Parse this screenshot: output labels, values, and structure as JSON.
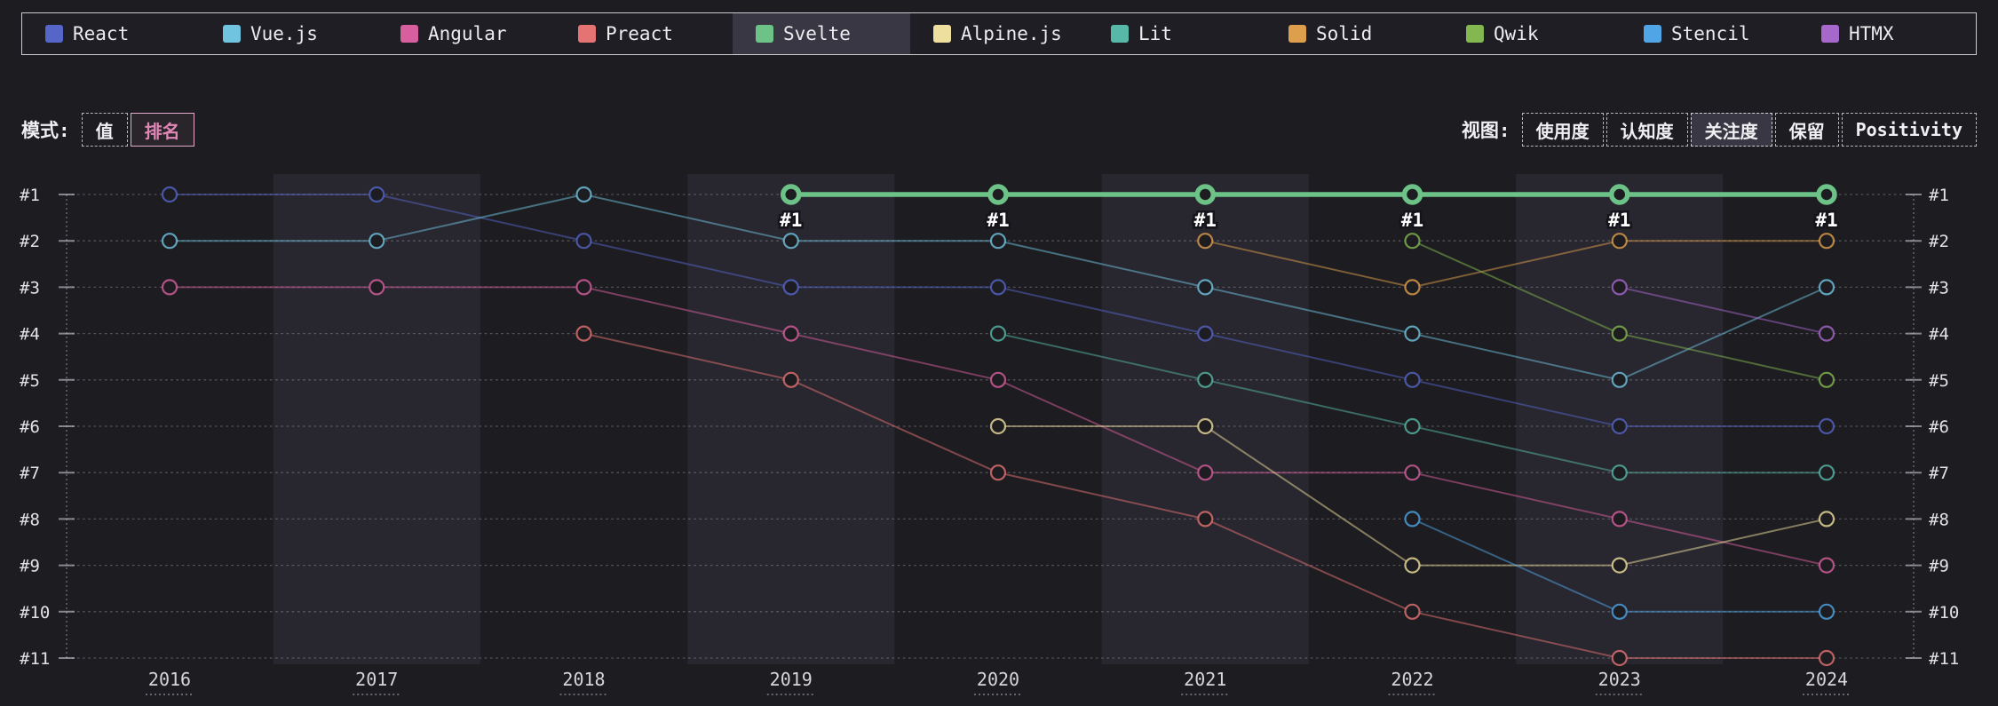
{
  "legend": {
    "items": [
      {
        "key": "react",
        "label": "React",
        "color": "#5565c8",
        "selected": false
      },
      {
        "key": "vuejs",
        "label": "Vue.js",
        "color": "#70c4e0",
        "selected": false
      },
      {
        "key": "angular",
        "label": "Angular",
        "color": "#d75f9e",
        "selected": false
      },
      {
        "key": "preact",
        "label": "Preact",
        "color": "#e57373",
        "selected": false
      },
      {
        "key": "svelte",
        "label": "Svelte",
        "color": "#6cc287",
        "selected": true
      },
      {
        "key": "alpinejs",
        "label": "Alpine.js",
        "color": "#eedf9e",
        "selected": false
      },
      {
        "key": "lit",
        "label": "Lit",
        "color": "#58b8a8",
        "selected": false
      },
      {
        "key": "solid",
        "label": "Solid",
        "color": "#de9f4c",
        "selected": false
      },
      {
        "key": "qwik",
        "label": "Qwik",
        "color": "#83b850",
        "selected": false
      },
      {
        "key": "stencil",
        "label": "Stencil",
        "color": "#4fa5e5",
        "selected": false
      },
      {
        "key": "htmx",
        "label": "HTMX",
        "color": "#a668cb",
        "selected": false
      }
    ]
  },
  "controls": {
    "mode": {
      "label": "模式:",
      "options": [
        {
          "key": "value",
          "label": "值",
          "selected": false
        },
        {
          "key": "rank",
          "label": "排名",
          "selected": true
        }
      ]
    },
    "view": {
      "label": "视图:",
      "options": [
        {
          "key": "usage",
          "label": "使用度",
          "selected": false
        },
        {
          "key": "awareness",
          "label": "认知度",
          "selected": false
        },
        {
          "key": "interest",
          "label": "关注度",
          "selected": true
        },
        {
          "key": "retention",
          "label": "保留",
          "selected": false
        },
        {
          "key": "positivity",
          "label": "Positivity",
          "selected": false
        }
      ]
    }
  },
  "colors": {
    "background": "#1d1c21",
    "band": "rgba(140,125,180,0.10)",
    "selected_bg": "#3a3744",
    "rank_accent": "#e187b6",
    "grid": "#c9c9d2",
    "axis": "#a9a9b2",
    "label_text": "#e2e2e6"
  },
  "chart_data": {
    "type": "line",
    "mode": "rank",
    "x": [
      2016,
      2017,
      2018,
      2019,
      2020,
      2021,
      2022,
      2023,
      2024
    ],
    "y_axis_labels": [
      "#1",
      "#2",
      "#3",
      "#4",
      "#5",
      "#6",
      "#7",
      "#8",
      "#9",
      "#10",
      "#11"
    ],
    "ylim": [
      1,
      11
    ],
    "grid": "dotted-horizontal",
    "legend_position": "top",
    "highlight_series": "Svelte",
    "highlight_point_label": "#1",
    "series": [
      {
        "key": "react",
        "name": "React",
        "color": "#5565c8",
        "highlight": false,
        "values": [
          1,
          1,
          2,
          3,
          3,
          4,
          5,
          6,
          6
        ]
      },
      {
        "key": "vuejs",
        "name": "Vue.js",
        "color": "#70c4e0",
        "highlight": false,
        "values": [
          2,
          2,
          1,
          2,
          2,
          3,
          4,
          5,
          3
        ]
      },
      {
        "key": "angular",
        "name": "Angular",
        "color": "#d75f9e",
        "highlight": false,
        "values": [
          3,
          3,
          3,
          4,
          5,
          7,
          7,
          8,
          9
        ]
      },
      {
        "key": "preact",
        "name": "Preact",
        "color": "#e57373",
        "highlight": false,
        "values": [
          null,
          null,
          4,
          5,
          7,
          8,
          10,
          11,
          11
        ]
      },
      {
        "key": "svelte",
        "name": "Svelte",
        "color": "#6cc287",
        "highlight": true,
        "values": [
          null,
          null,
          null,
          1,
          1,
          1,
          1,
          1,
          1
        ]
      },
      {
        "key": "alpinejs",
        "name": "Alpine.js",
        "color": "#eedf9e",
        "highlight": false,
        "values": [
          null,
          null,
          null,
          null,
          6,
          6,
          9,
          9,
          8
        ]
      },
      {
        "key": "lit",
        "name": "Lit",
        "color": "#58b8a8",
        "highlight": false,
        "values": [
          null,
          null,
          null,
          null,
          4,
          5,
          6,
          7,
          7
        ]
      },
      {
        "key": "solid",
        "name": "Solid",
        "color": "#de9f4c",
        "highlight": false,
        "values": [
          null,
          null,
          null,
          null,
          null,
          2,
          3,
          2,
          2
        ]
      },
      {
        "key": "qwik",
        "name": "Qwik",
        "color": "#83b850",
        "highlight": false,
        "values": [
          null,
          null,
          null,
          null,
          null,
          null,
          2,
          4,
          5
        ]
      },
      {
        "key": "stencil",
        "name": "Stencil",
        "color": "#4fa5e5",
        "highlight": false,
        "values": [
          null,
          null,
          null,
          null,
          null,
          null,
          8,
          10,
          10
        ]
      },
      {
        "key": "htmx",
        "name": "HTMX",
        "color": "#a668cb",
        "highlight": false,
        "values": [
          null,
          null,
          null,
          null,
          null,
          null,
          null,
          3,
          4
        ]
      }
    ]
  }
}
